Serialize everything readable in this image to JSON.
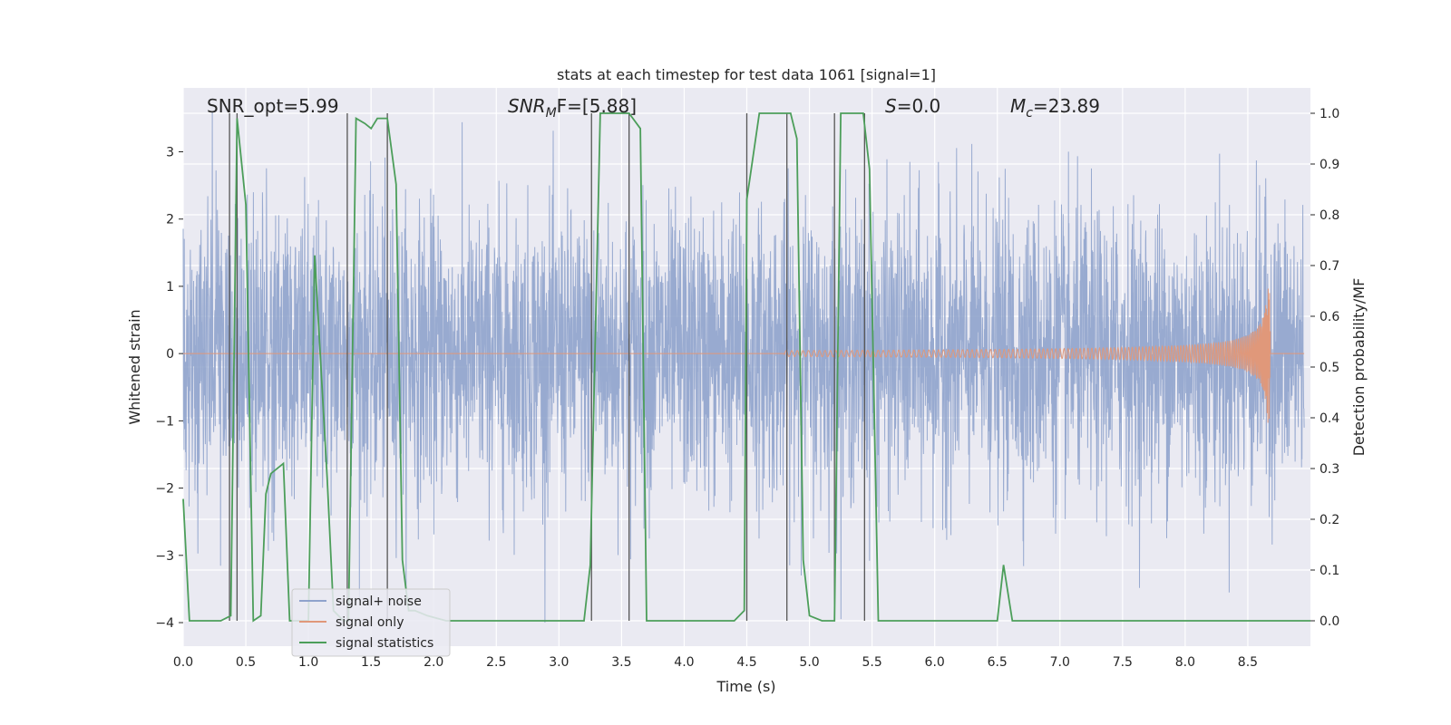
{
  "chart_data": {
    "type": "line",
    "title": "stats at each timestep for test data 1061 [signal=1]",
    "xlabel": "Time (s)",
    "ylabel": "Whitened strain",
    "y2label": "Detection probability/MF",
    "xlim": [
      0.0,
      9.0
    ],
    "ylim": [
      -4.35,
      3.95
    ],
    "y2lim": [
      -0.05,
      1.05
    ],
    "xticks": [
      0.0,
      0.5,
      1.0,
      1.5,
      2.0,
      2.5,
      3.0,
      3.5,
      4.0,
      4.5,
      5.0,
      5.5,
      6.0,
      6.5,
      7.0,
      7.5,
      8.0,
      8.5
    ],
    "xtick_labels": [
      "0.0",
      "0.5",
      "1.0",
      "1.5",
      "2.0",
      "2.5",
      "3.0",
      "3.5",
      "4.0",
      "4.5",
      "5.0",
      "5.5",
      "6.0",
      "6.5",
      "7.0",
      "7.5",
      "8.0",
      "8.5"
    ],
    "yticks": [
      -4,
      -3,
      -2,
      -1,
      0,
      1,
      2,
      3
    ],
    "ytick_labels": [
      "−4",
      "−3",
      "−2",
      "−1",
      "0",
      "1",
      "2",
      "3"
    ],
    "y2ticks": [
      0.0,
      0.1,
      0.2,
      0.3,
      0.4,
      0.5,
      0.6,
      0.7,
      0.8,
      0.9,
      1.0
    ],
    "y2tick_labels": [
      "0.0",
      "0.1",
      "0.2",
      "0.3",
      "0.4",
      "0.5",
      "0.6",
      "0.7",
      "0.8",
      "0.9",
      "1.0"
    ],
    "grid": true,
    "legend_position": "lower-left",
    "annotations": {
      "snr_opt": "SNR_opt=5.99",
      "snr_mf": "SNR",
      "snr_mf_sub": "M",
      "snr_mf_rest": "F=[5.88]",
      "s_var": "S",
      "s_rest": "=0.0",
      "mc_var": "M",
      "mc_sub": "c",
      "mc_rest": "=23.89"
    },
    "series": [
      {
        "name": "signal+ noise",
        "color": "#8fa3cc",
        "description_values": "whitened strain noise, approximately gaussian, std ~1, peaks about ±3.5",
        "y_amplitude": 1.0
      },
      {
        "name": "signal only",
        "color": "#e0987a",
        "chirp": {
          "start_x": 4.8,
          "merger_x": 8.68,
          "max_amplitude": 1.2
        }
      },
      {
        "name": "signal statistics",
        "color": "#4c9e5a",
        "axis": "right",
        "x": [
          0.0,
          0.05,
          0.1,
          0.2,
          0.3,
          0.38,
          0.43,
          0.5,
          0.56,
          0.62,
          0.66,
          0.7,
          0.8,
          0.85,
          0.9,
          1.0,
          1.05,
          1.1,
          1.15,
          1.2,
          1.28,
          1.32,
          1.38,
          1.45,
          1.5,
          1.55,
          1.6,
          1.63,
          1.7,
          1.75,
          1.8,
          1.85,
          1.95,
          2.1,
          2.3,
          2.5,
          2.8,
          3.0,
          3.1,
          3.2,
          3.25,
          3.33,
          3.4,
          3.5,
          3.56,
          3.65,
          3.7,
          3.8,
          3.9,
          4.0,
          4.2,
          4.4,
          4.48,
          4.5,
          4.6,
          4.7,
          4.8,
          4.85,
          4.9,
          4.95,
          5.0,
          5.1,
          5.18,
          5.2,
          5.25,
          5.35,
          5.43,
          5.48,
          5.55,
          5.6,
          5.8,
          6.0,
          6.2,
          6.4,
          6.5,
          6.55,
          6.62,
          6.7,
          7.0,
          7.1,
          7.5,
          8.0,
          8.5,
          9.0
        ],
        "y": [
          0.24,
          0.0,
          0.0,
          0.0,
          0.0,
          0.01,
          0.99,
          0.82,
          0.0,
          0.01,
          0.25,
          0.29,
          0.31,
          0.0,
          0.0,
          0.0,
          0.72,
          0.5,
          0.28,
          0.02,
          0.0,
          0.0,
          0.99,
          0.98,
          0.97,
          0.99,
          0.99,
          0.99,
          0.86,
          0.12,
          0.02,
          0.02,
          0.01,
          0.0,
          0.0,
          0.0,
          0.0,
          0.0,
          0.0,
          0.0,
          0.11,
          1.0,
          1.0,
          1.0,
          1.0,
          0.97,
          0.0,
          0.0,
          0.0,
          0.0,
          0.0,
          0.0,
          0.02,
          0.83,
          1.0,
          1.0,
          1.0,
          1.0,
          0.95,
          0.12,
          0.01,
          0.0,
          0.0,
          0.0,
          1.0,
          1.0,
          1.0,
          0.89,
          0.0,
          0.0,
          0.0,
          0.0,
          0.0,
          0.0,
          0.0,
          0.11,
          0.0,
          0.0,
          0.0,
          0.0,
          0.0,
          0.0,
          0.0,
          0.0
        ]
      }
    ],
    "vertical_lines_x": [
      0.37,
      0.43,
      1.31,
      1.63,
      3.26,
      3.56,
      4.5,
      4.82,
      5.2,
      5.44
    ]
  }
}
